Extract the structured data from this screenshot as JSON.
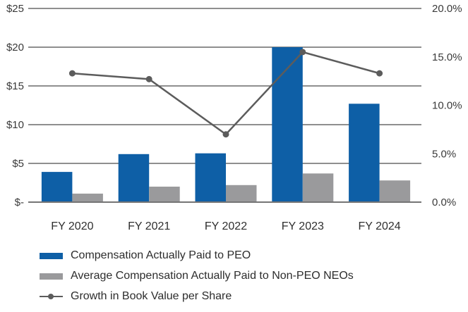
{
  "chart_data": {
    "type": "combo-bar-line",
    "title": "",
    "categories": [
      "FY 2020",
      "FY 2021",
      "FY 2022",
      "FY 2023",
      "FY 2024"
    ],
    "series": [
      {
        "name": "Compensation Actually Paid to PEO",
        "type": "bar",
        "axis": "left",
        "color": "#0E5FA6",
        "values": [
          3.9,
          6.2,
          6.3,
          20.0,
          12.7
        ]
      },
      {
        "name": "Average Compensation Actually Paid to Non-PEO NEOs",
        "type": "bar",
        "axis": "left",
        "color": "#9A9A9C",
        "values": [
          1.1,
          2.0,
          2.2,
          3.7,
          2.8
        ]
      },
      {
        "name": "Growth in Book Value per Share",
        "type": "line",
        "axis": "right",
        "color": "#5C5C5C",
        "values": [
          13.3,
          12.7,
          7.0,
          15.5,
          13.3
        ]
      }
    ],
    "left_axis": {
      "ticks": [
        "$25",
        "$20",
        "$15",
        "$10",
        "$5",
        "$-"
      ],
      "min": 0,
      "max": 25,
      "step": 5,
      "unit": "USD millions"
    },
    "right_axis": {
      "ticks": [
        "20.0%",
        "15.0%",
        "10.0%",
        "5.0%",
        "0.0%"
      ],
      "min": 0,
      "max": 20,
      "step": 5,
      "unit": "percent"
    },
    "grid": true,
    "legend_position": "bottom-left",
    "colors": {
      "grid_line": "#6A6A6A",
      "baseline": "#757575",
      "axis_text": "#3A3A3A",
      "category_text": "#2F2F2F"
    }
  }
}
